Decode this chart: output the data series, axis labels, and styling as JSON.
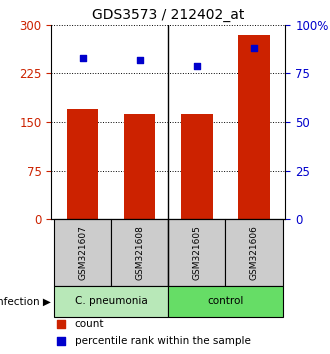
{
  "title": "GDS3573 / 212402_at",
  "samples": [
    "GSM321607",
    "GSM321608",
    "GSM321605",
    "GSM321606"
  ],
  "counts": [
    170,
    163,
    163,
    285
  ],
  "percentile_ranks": [
    83,
    82,
    79,
    88
  ],
  "bar_color": "#cc2200",
  "dot_color": "#0000cc",
  "left_axis_color": "#cc2200",
  "right_axis_color": "#0000cc",
  "left_yticks": [
    0,
    75,
    150,
    225,
    300
  ],
  "right_yticks": [
    0,
    25,
    50,
    75,
    100
  ],
  "right_ytick_labels": [
    "0",
    "25",
    "50",
    "75",
    "100%"
  ],
  "ylim_left": [
    0,
    300
  ],
  "ylim_right": [
    0,
    100
  ],
  "infection_label": "infection",
  "group_labels": [
    "C. pneumonia",
    "control"
  ],
  "cpneu_color": "#b8e8b8",
  "control_color": "#66dd66",
  "legend_count": "count",
  "legend_percentile": "percentile rank within the sample",
  "bar_width": 0.55,
  "sample_box_color": "#cccccc",
  "title_fontsize": 10
}
